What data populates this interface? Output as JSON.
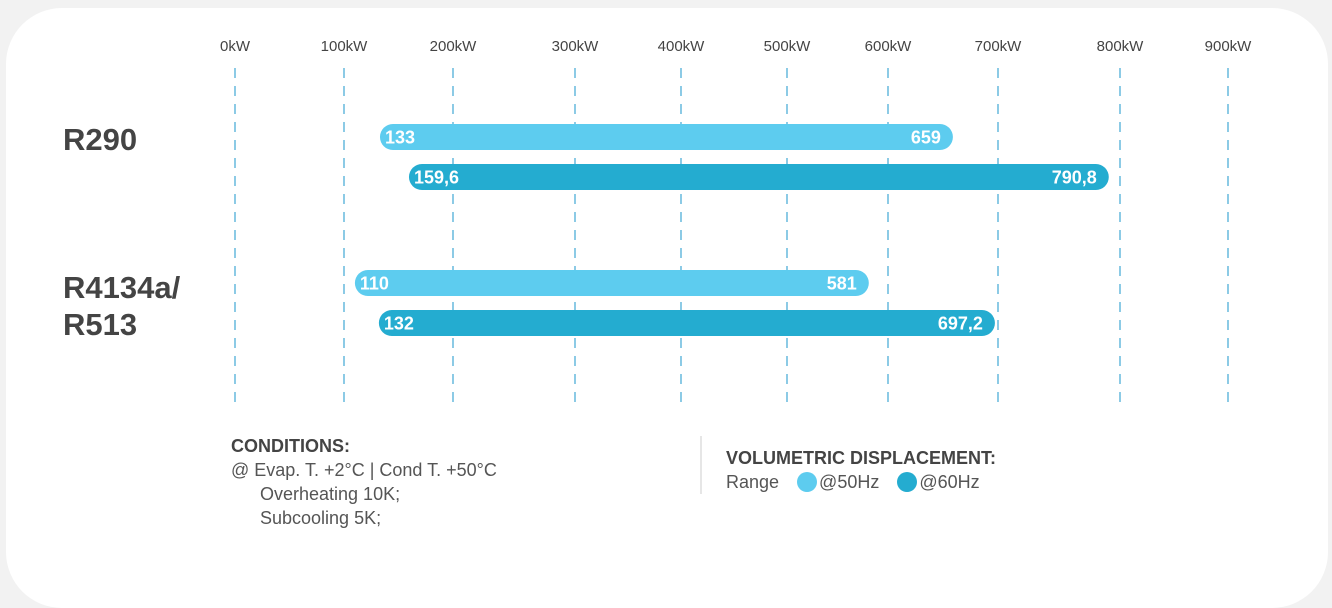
{
  "colors": {
    "hz50": "#5dccef",
    "hz60": "#24acd0",
    "grid": "#3fa8d4",
    "text": "#444444"
  },
  "chart_data": {
    "type": "bar",
    "orientation": "horizontal-range",
    "title": "",
    "xlabel": "",
    "ylabel": "",
    "x_ticks": [
      "0kW",
      "100kW",
      "200kW",
      "300kW",
      "400kW",
      "500kW",
      "600kW",
      "700kW",
      "800kW",
      "900kW"
    ],
    "x_tick_values": [
      0,
      100,
      200,
      300,
      400,
      500,
      600,
      700,
      800,
      900
    ],
    "xlim": [
      0,
      900
    ],
    "grid": "vertical dashed",
    "categories": [
      "R290",
      "R4134a/\nR513"
    ],
    "category_lines": [
      [
        "R290"
      ],
      [
        "R4134a/",
        "R513"
      ]
    ],
    "series": [
      {
        "name": "@50Hz",
        "ranges": [
          {
            "start": 133,
            "end": 659,
            "start_label": "133",
            "end_label": "659"
          },
          {
            "start": 110,
            "end": 581,
            "start_label": "110",
            "end_label": "581"
          }
        ]
      },
      {
        "name": "@60Hz",
        "ranges": [
          {
            "start": 159.6,
            "end": 790.8,
            "start_label": "159,6",
            "end_label": "790,8"
          },
          {
            "start": 132,
            "end": 697.2,
            "start_label": "132",
            "end_label": "697,2"
          }
        ]
      }
    ]
  },
  "conditions": {
    "heading": "CONDITIONS:",
    "line1": "@ Evap. T. +2°C  |  Cond T. +50°C",
    "line2": "Overheating 10K;",
    "line3": "Subcooling 5K;"
  },
  "legend": {
    "heading": "VOLUMETRIC DISPLACEMENT:",
    "range_label": "Range",
    "item_50": "@50Hz",
    "item_60": "@60Hz"
  }
}
